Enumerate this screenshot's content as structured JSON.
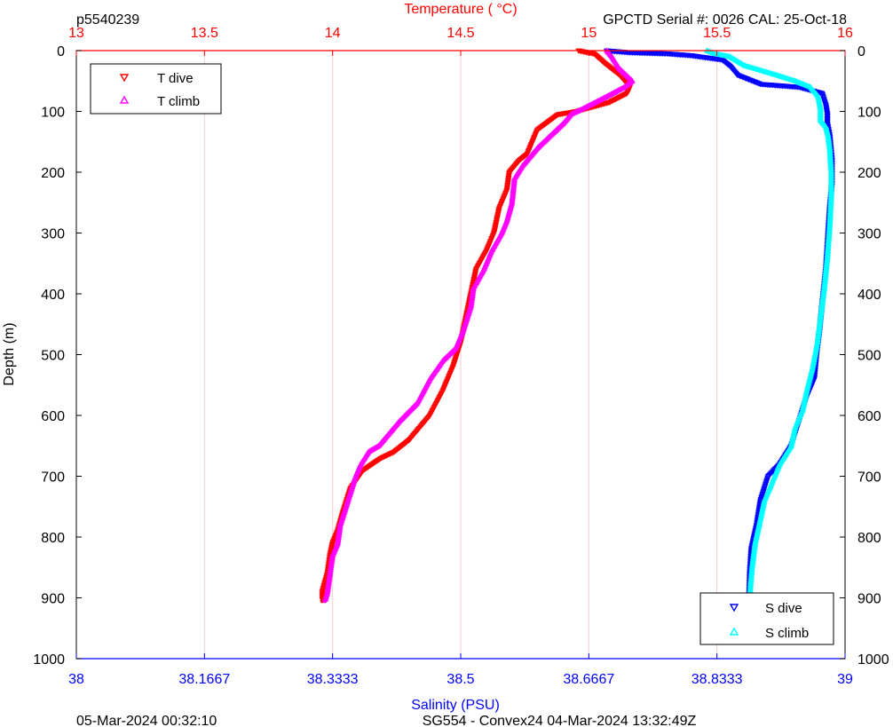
{
  "header": {
    "profile_id": "p5540239",
    "serial_info": "GPCTD Serial #: 0026 CAL: 25-Oct-18"
  },
  "footer": {
    "left": "05-Mar-2024 00:32:10",
    "center": "SG554 - Convex24 04-Mar-2024 13:32:49Z"
  },
  "colors": {
    "temperature_axis": "#ff0000",
    "salinity_axis": "#0000ff",
    "t_dive": "#ff0000",
    "t_climb": "#ff00ff",
    "s_dive": "#0000ff",
    "s_climb": "#00ffff",
    "grid": "#f4cccc"
  },
  "chart_data": {
    "type": "scatter",
    "top_axis": {
      "label": "Temperature (    °C)",
      "range": [
        13,
        16
      ],
      "ticks": [
        "13",
        "13.5",
        "14",
        "14.5",
        "15",
        "15.5",
        "16"
      ]
    },
    "bottom_axis": {
      "label": "Salinity (PSU)",
      "range": [
        38,
        39
      ],
      "ticks": [
        "38",
        "38.1667",
        "38.3333",
        "38.5",
        "38.6667",
        "38.8333",
        "39"
      ]
    },
    "y_axis": {
      "label": "Depth (m)",
      "range": [
        0,
        1000
      ],
      "reversed": true,
      "ticks": [
        "0",
        "100",
        "200",
        "300",
        "400",
        "500",
        "600",
        "700",
        "800",
        "900",
        "1000"
      ]
    },
    "grid": true,
    "legends": [
      {
        "placement": "top-left",
        "entries": [
          "T dive",
          "T climb"
        ]
      },
      {
        "placement": "bottom-right",
        "entries": [
          "S dive",
          "S climb"
        ]
      }
    ],
    "series": [
      {
        "name": "T dive",
        "axis": "temperature",
        "marker": "triangle-down",
        "points": [
          [
            14.96,
            0
          ],
          [
            15.02,
            5
          ],
          [
            15.06,
            20
          ],
          [
            15.12,
            40
          ],
          [
            15.16,
            60
          ],
          [
            15.15,
            70
          ],
          [
            15.08,
            85
          ],
          [
            14.95,
            100
          ],
          [
            14.88,
            105
          ],
          [
            14.8,
            130
          ],
          [
            14.78,
            150
          ],
          [
            14.76,
            170
          ],
          [
            14.73,
            180
          ],
          [
            14.69,
            200
          ],
          [
            14.68,
            230
          ],
          [
            14.65,
            260
          ],
          [
            14.63,
            300
          ],
          [
            14.6,
            330
          ],
          [
            14.56,
            360
          ],
          [
            14.55,
            380
          ],
          [
            14.54,
            400
          ],
          [
            14.52,
            440
          ],
          [
            14.5,
            480
          ],
          [
            14.47,
            520
          ],
          [
            14.43,
            560
          ],
          [
            14.38,
            600
          ],
          [
            14.3,
            640
          ],
          [
            14.24,
            660
          ],
          [
            14.19,
            670
          ],
          [
            14.12,
            690
          ],
          [
            14.07,
            720
          ],
          [
            14.04,
            760
          ],
          [
            14.02,
            790
          ],
          [
            14.0,
            810
          ],
          [
            13.99,
            830
          ],
          [
            13.98,
            860
          ],
          [
            13.96,
            890
          ],
          [
            13.96,
            905
          ]
        ]
      },
      {
        "name": "T climb",
        "axis": "temperature",
        "marker": "triangle-up",
        "points": [
          [
            15.07,
            0
          ],
          [
            15.09,
            10
          ],
          [
            15.12,
            30
          ],
          [
            15.17,
            50
          ],
          [
            15.14,
            60
          ],
          [
            15.05,
            80
          ],
          [
            14.98,
            95
          ],
          [
            14.93,
            105
          ],
          [
            14.9,
            120
          ],
          [
            14.85,
            140
          ],
          [
            14.8,
            160
          ],
          [
            14.78,
            170
          ],
          [
            14.74,
            190
          ],
          [
            14.71,
            210
          ],
          [
            14.7,
            250
          ],
          [
            14.68,
            280
          ],
          [
            14.66,
            300
          ],
          [
            14.62,
            330
          ],
          [
            14.59,
            360
          ],
          [
            14.55,
            390
          ],
          [
            14.54,
            420
          ],
          [
            14.51,
            460
          ],
          [
            14.48,
            490
          ],
          [
            14.43,
            510
          ],
          [
            14.38,
            540
          ],
          [
            14.33,
            580
          ],
          [
            14.26,
            610
          ],
          [
            14.2,
            640
          ],
          [
            14.18,
            650
          ],
          [
            14.14,
            660
          ],
          [
            14.11,
            680
          ],
          [
            14.09,
            700
          ],
          [
            14.06,
            740
          ],
          [
            14.03,
            780
          ],
          [
            14.02,
            810
          ],
          [
            14.0,
            830
          ],
          [
            13.99,
            860
          ],
          [
            13.98,
            890
          ],
          [
            13.97,
            905
          ]
        ]
      },
      {
        "name": "S dive",
        "axis": "salinity",
        "marker": "triangle-down",
        "points": [
          [
            38.69,
            0
          ],
          [
            38.72,
            3
          ],
          [
            38.77,
            5
          ],
          [
            38.8,
            8
          ],
          [
            38.84,
            15
          ],
          [
            38.85,
            25
          ],
          [
            38.86,
            40
          ],
          [
            38.89,
            55
          ],
          [
            38.94,
            60
          ],
          [
            38.97,
            70
          ],
          [
            38.975,
            90
          ],
          [
            38.977,
            105
          ],
          [
            38.977,
            120
          ],
          [
            38.98,
            140
          ],
          [
            38.983,
            180
          ],
          [
            38.983,
            220
          ],
          [
            38.98,
            260
          ],
          [
            38.978,
            300
          ],
          [
            38.975,
            360
          ],
          [
            38.97,
            420
          ],
          [
            38.967,
            460
          ],
          [
            38.963,
            500
          ],
          [
            38.96,
            540
          ],
          [
            38.95,
            570
          ],
          [
            38.94,
            610
          ],
          [
            38.93,
            650
          ],
          [
            38.915,
            680
          ],
          [
            38.9,
            700
          ],
          [
            38.89,
            740
          ],
          [
            38.885,
            780
          ],
          [
            38.878,
            820
          ],
          [
            38.876,
            860
          ],
          [
            38.875,
            905
          ]
        ]
      },
      {
        "name": "S climb",
        "axis": "salinity",
        "marker": "triangle-up",
        "points": [
          [
            38.82,
            0
          ],
          [
            38.83,
            5
          ],
          [
            38.85,
            10
          ],
          [
            38.87,
            25
          ],
          [
            38.91,
            40
          ],
          [
            38.935,
            50
          ],
          [
            38.955,
            60
          ],
          [
            38.965,
            75
          ],
          [
            38.968,
            95
          ],
          [
            38.968,
            115
          ],
          [
            38.975,
            125
          ],
          [
            38.978,
            140
          ],
          [
            38.98,
            160
          ],
          [
            38.982,
            200
          ],
          [
            38.982,
            240
          ],
          [
            38.98,
            290
          ],
          [
            38.977,
            340
          ],
          [
            38.973,
            390
          ],
          [
            38.968,
            440
          ],
          [
            38.964,
            480
          ],
          [
            38.958,
            520
          ],
          [
            38.95,
            560
          ],
          [
            38.945,
            590
          ],
          [
            38.935,
            620
          ],
          [
            38.93,
            650
          ],
          [
            38.915,
            680
          ],
          [
            38.905,
            710
          ],
          [
            38.895,
            740
          ],
          [
            38.89,
            770
          ],
          [
            38.883,
            810
          ],
          [
            38.879,
            850
          ],
          [
            38.877,
            880
          ],
          [
            38.876,
            905
          ]
        ]
      }
    ]
  }
}
